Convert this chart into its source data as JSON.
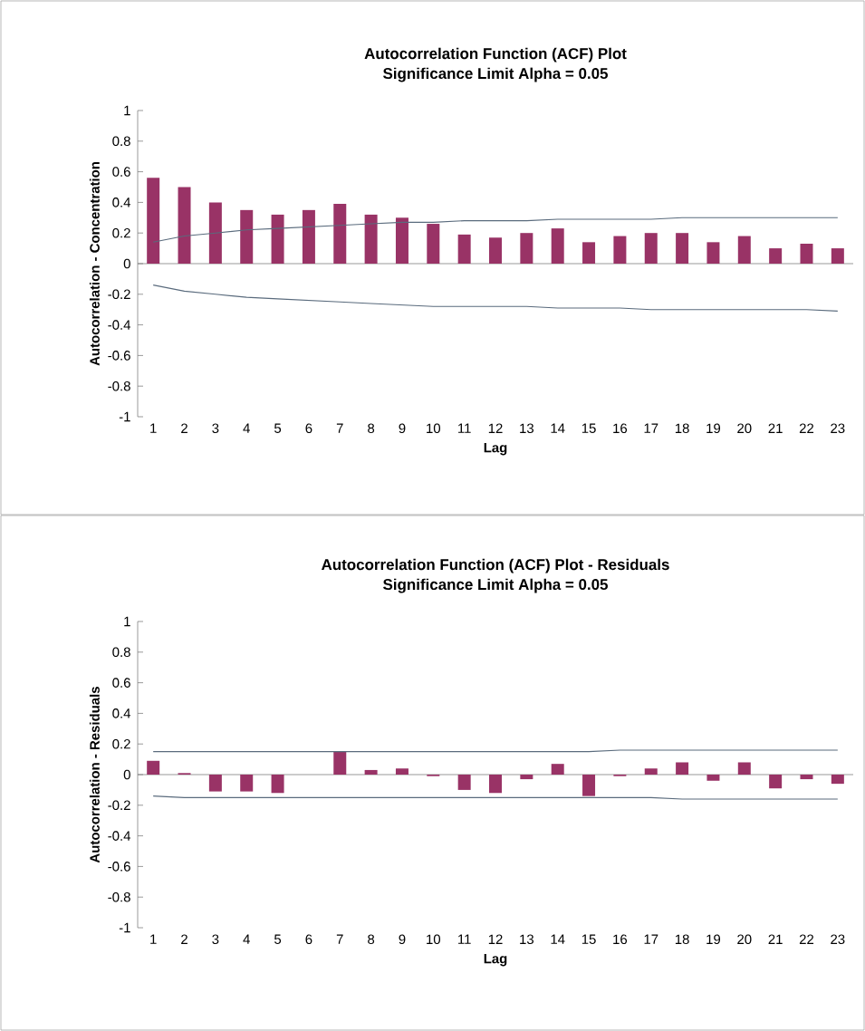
{
  "chart_data": [
    {
      "type": "bar",
      "title": "Autocorrelation Function (ACF) Plot",
      "subtitle": "Significance Limit Alpha = 0.05",
      "xlabel": "Lag",
      "ylabel": "Autocorrelation - Concentration",
      "categories": [
        "1",
        "2",
        "3",
        "4",
        "5",
        "6",
        "7",
        "8",
        "9",
        "10",
        "11",
        "12",
        "13",
        "14",
        "15",
        "16",
        "17",
        "18",
        "19",
        "20",
        "21",
        "22",
        "23"
      ],
      "series": [
        {
          "color": "#993366",
          "values": [
            0.56,
            0.5,
            0.4,
            0.35,
            0.32,
            0.35,
            0.39,
            0.32,
            0.3,
            0.26,
            0.19,
            0.17,
            0.2,
            0.23,
            0.14,
            0.18,
            0.2,
            0.2,
            0.14,
            0.18,
            0.1,
            0.13,
            0.1
          ]
        },
        {
          "type": "line",
          "color": "#5a6b7d",
          "values": [
            0.14,
            0.18,
            0.2,
            0.22,
            0.23,
            0.24,
            0.25,
            0.26,
            0.27,
            0.27,
            0.28,
            0.28,
            0.28,
            0.29,
            0.29,
            0.29,
            0.29,
            0.3,
            0.3,
            0.3,
            0.3,
            0.3,
            0.3
          ]
        },
        {
          "type": "line",
          "color": "#5a6b7d",
          "values": [
            -0.14,
            -0.18,
            -0.2,
            -0.22,
            -0.23,
            -0.24,
            -0.25,
            -0.26,
            -0.27,
            -0.28,
            -0.28,
            -0.28,
            -0.28,
            -0.29,
            -0.29,
            -0.29,
            -0.3,
            -0.3,
            -0.3,
            -0.3,
            -0.3,
            -0.3,
            -0.31
          ]
        }
      ],
      "ylim": [
        -1,
        1
      ],
      "yticks": [
        -1,
        {
          "value": -0.8,
          "label": "-0.8"
        },
        {
          "value": -0.6,
          "label": "-0.6"
        },
        {
          "value": -0.4,
          "label": "-0.4"
        },
        {
          "value": -0.2,
          "label": "-0.2"
        },
        0,
        0.2,
        0.4,
        0.6,
        0.8,
        1
      ]
    },
    {
      "type": "bar",
      "title": "Autocorrelation Function (ACF) Plot - Residuals",
      "subtitle": "Significance Limit Alpha = 0.05",
      "xlabel": "Lag",
      "ylabel": "Autocorrelation - Residuals",
      "categories": [
        "1",
        "2",
        "3",
        "4",
        "5",
        "6",
        "7",
        "8",
        "9",
        "10",
        "11",
        "12",
        "13",
        "14",
        "15",
        "16",
        "17",
        "18",
        "19",
        "20",
        "21",
        "22",
        "23"
      ],
      "series": [
        {
          "color": "#993366",
          "values": [
            0.09,
            0.01,
            -0.11,
            -0.11,
            -0.12,
            0,
            0.15,
            0.03,
            0.04,
            -0.01,
            -0.1,
            -0.12,
            -0.03,
            0.07,
            -0.14,
            -0.01,
            0.04,
            0.08,
            -0.04,
            0.08,
            -0.09,
            -0.03,
            -0.06
          ]
        },
        {
          "type": "line",
          "color": "#5a6b7d",
          "values": [
            0.15,
            0.15,
            0.15,
            0.15,
            0.15,
            0.15,
            0.15,
            0.15,
            0.15,
            0.15,
            0.15,
            0.15,
            0.15,
            0.15,
            0.15,
            0.16,
            0.16,
            0.16,
            0.16,
            0.16,
            0.16,
            0.16,
            0.16
          ]
        },
        {
          "type": "line",
          "color": "#5a6b7d",
          "values": [
            -0.14,
            -0.15,
            -0.15,
            -0.15,
            -0.15,
            -0.15,
            -0.15,
            -0.15,
            -0.15,
            -0.15,
            -0.15,
            -0.15,
            -0.15,
            -0.15,
            -0.15,
            -0.15,
            -0.15,
            -0.16,
            -0.16,
            -0.16,
            -0.16,
            -0.16,
            -0.16
          ]
        }
      ],
      "ylim": [
        -1,
        1
      ],
      "yticks": [
        -1,
        {
          "value": -0.8,
          "label": "-0.8"
        },
        {
          "value": -0.6,
          "label": "-0.6"
        },
        {
          "value": -0.4,
          "label": "-0.4"
        },
        {
          "value": -0.2,
          "label": "-0.2"
        },
        0,
        0.2,
        0.4,
        0.6,
        0.8,
        1
      ]
    }
  ]
}
